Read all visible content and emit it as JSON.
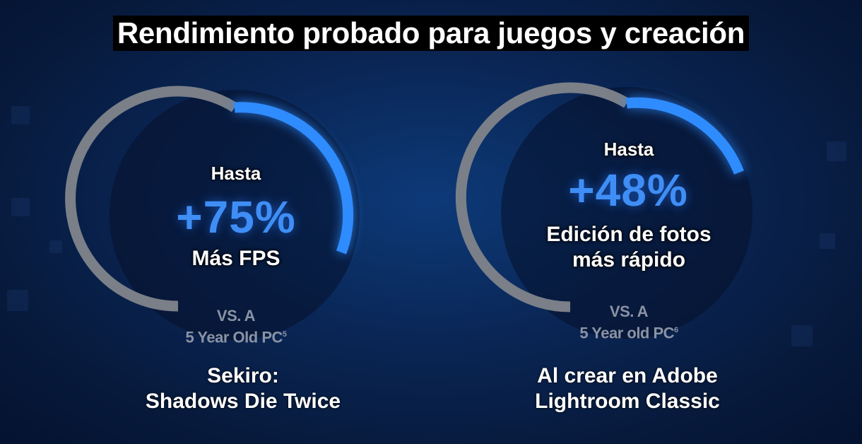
{
  "title": "Rendimiento probado para juegos y creación",
  "colors": {
    "accent": "#2f8cff",
    "track": "#7a7f88",
    "background": "#0a2656"
  },
  "gauges": [
    {
      "hasta": "Hasta",
      "value": "+75%",
      "subtitle": "Más FPS",
      "vs_line1": "VS. A",
      "vs_line2": "5 Year Old PC",
      "footnote": "5",
      "caption_line1": "Sekiro:",
      "caption_line2": "Shadows Die Twice"
    },
    {
      "hasta": "Hasta",
      "value": "+48%",
      "subtitle_line1": "Edición de fotos",
      "subtitle_line2": "más rápido",
      "vs_line1": "VS. A",
      "vs_line2": "5 Year old PC",
      "footnote": "6",
      "caption_line1": "Al crear en Adobe",
      "caption_line2": "Lightroom Classic"
    }
  ]
}
